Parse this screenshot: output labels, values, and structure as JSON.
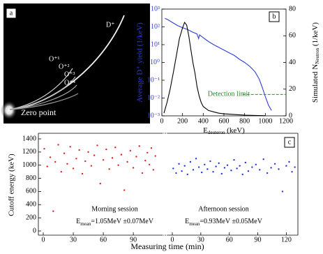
{
  "panel_a": {
    "label": "a",
    "species": [
      "D⁺",
      "O⁺¹",
      "O⁺²",
      "O⁺³",
      "O⁺⁴"
    ],
    "zero_point": "Zero point"
  },
  "chart_data": [
    {
      "type": "line",
      "label": "b",
      "xlabel": {
        "text": "E",
        "sub": "deuteron",
        "rest": " (keV)"
      },
      "ylabel": "Average D⁺ yield (1/keV)",
      "y2label": {
        "text": "Simulated N",
        "sub": "Neutron",
        "rest": " (1/keV)"
      },
      "xlim": [
        0,
        1200
      ],
      "xticks": [
        0,
        200,
        400,
        600,
        800,
        1000,
        1200
      ],
      "ylim": [
        0.001,
        1000
      ],
      "log_y": true,
      "yticks": [
        {
          "value": 0.001,
          "label": "10⁻³"
        },
        {
          "value": 0.01,
          "label": "10⁻²"
        },
        {
          "value": 0.1,
          "label": "10⁻¹"
        },
        {
          "value": 1,
          "label": "10⁰"
        },
        {
          "value": 10,
          "label": "10¹"
        },
        {
          "value": 100,
          "label": "10²"
        },
        {
          "value": 1000,
          "label": "10³"
        }
      ],
      "y2lim": [
        0,
        80
      ],
      "y2ticks": [
        0,
        20,
        40,
        60,
        80
      ],
      "series": [
        {
          "color": "#2f3fd8",
          "x": [
            30,
            60,
            100,
            150,
            200,
            250,
            300,
            340,
            355,
            365,
            400,
            450,
            500,
            550,
            600,
            650,
            700,
            750,
            800,
            850,
            900,
            940,
            970,
            1000,
            1030,
            1060
          ],
          "values": [
            300,
            250,
            180,
            120,
            90,
            70,
            50,
            40,
            22,
            35,
            25,
            15,
            10,
            7,
            5,
            3.5,
            2.5,
            1.5,
            1,
            0.6,
            0.3,
            0.12,
            0.04,
            0.012,
            0.004,
            0.002
          ]
        },
        {
          "color": "#000000",
          "axis": "y2",
          "x": [
            20,
            50,
            80,
            110,
            140,
            170,
            200,
            220,
            240,
            260,
            280,
            300,
            320,
            340,
            360,
            380,
            400,
            450,
            500,
            550,
            600,
            700,
            800,
            900,
            1000
          ],
          "values": [
            2,
            10,
            20,
            32,
            45,
            58,
            66,
            70,
            68,
            60,
            50,
            40,
            32,
            22,
            15,
            10,
            7,
            4,
            3,
            2,
            1.5,
            1,
            0.5,
            0.3,
            0.1
          ]
        }
      ],
      "detection_limit": {
        "text": "Detection limit",
        "color": "#2a8a2a",
        "y2": 16,
        "x": [
          780,
          1200
        ]
      }
    },
    {
      "type": "scatter",
      "label": "c",
      "xlabel": "Measuring time (min)",
      "ylabel": "Cutoff energy (keV)",
      "ylim": [
        0,
        1400
      ],
      "yticks": [
        0,
        200,
        400,
        600,
        800,
        1000,
        1200,
        1400
      ],
      "series": [
        {
          "name": "Morning session",
          "color": "#e02222",
          "xlim": [
            0,
            115
          ],
          "xticks": [
            0,
            30,
            60,
            90
          ],
          "annotation": {
            "text": "E",
            "sub": "mean",
            "rest": "=1.05MeV ±0.07MeV"
          },
          "x": [
            1,
            4,
            7,
            10,
            12,
            15,
            18,
            21,
            24,
            27,
            30,
            33,
            36,
            39,
            42,
            45,
            48,
            51,
            54,
            57,
            60,
            63,
            66,
            69,
            72,
            75,
            78,
            81,
            84,
            87,
            90,
            93,
            96,
            99,
            102,
            104,
            106,
            108,
            110,
            112
          ],
          "values": [
            1250,
            980,
            1120,
            300,
            1050,
            1310,
            900,
            1180,
            1020,
            1280,
            950,
            1100,
            1230,
            870,
            1060,
            1200,
            990,
            1150,
            1300,
            720,
            1080,
            1240,
            940,
            1110,
            1270,
            1000,
            1160,
            620,
            1050,
            1220,
            960,
            1130,
            1290,
            880,
            1070,
            1190,
            1010,
            1260,
            930,
            1140
          ]
        },
        {
          "name": "Afternoon session",
          "color": "#2233e0",
          "xlim": [
            0,
            130
          ],
          "xticks": [
            0,
            30,
            60,
            90,
            120
          ],
          "annotation": {
            "text": "E",
            "sub": "mean",
            "rest": "=0.93MeV ±0.05MeV"
          },
          "x": [
            1,
            4,
            7,
            10,
            13,
            16,
            19,
            22,
            25,
            28,
            31,
            34,
            37,
            40,
            43,
            46,
            49,
            52,
            55,
            58,
            62,
            65,
            68,
            71,
            74,
            77,
            80,
            84,
            88,
            92,
            96,
            100,
            104,
            108,
            112,
            116,
            120,
            123,
            126,
            129
          ],
          "values": [
            950,
            880,
            1020,
            910,
            990,
            860,
            1050,
            930,
            1100,
            970,
            890,
            1010,
            940,
            1060,
            900,
            980,
            1030,
            870,
            960,
            1000,
            920,
            1080,
            950,
            990,
            860,
            1040,
            910,
            970,
            1010,
            930,
            1090,
            880,
            960,
            1020,
            940,
            600,
            990,
            1050,
            900,
            970
          ]
        }
      ]
    }
  ]
}
